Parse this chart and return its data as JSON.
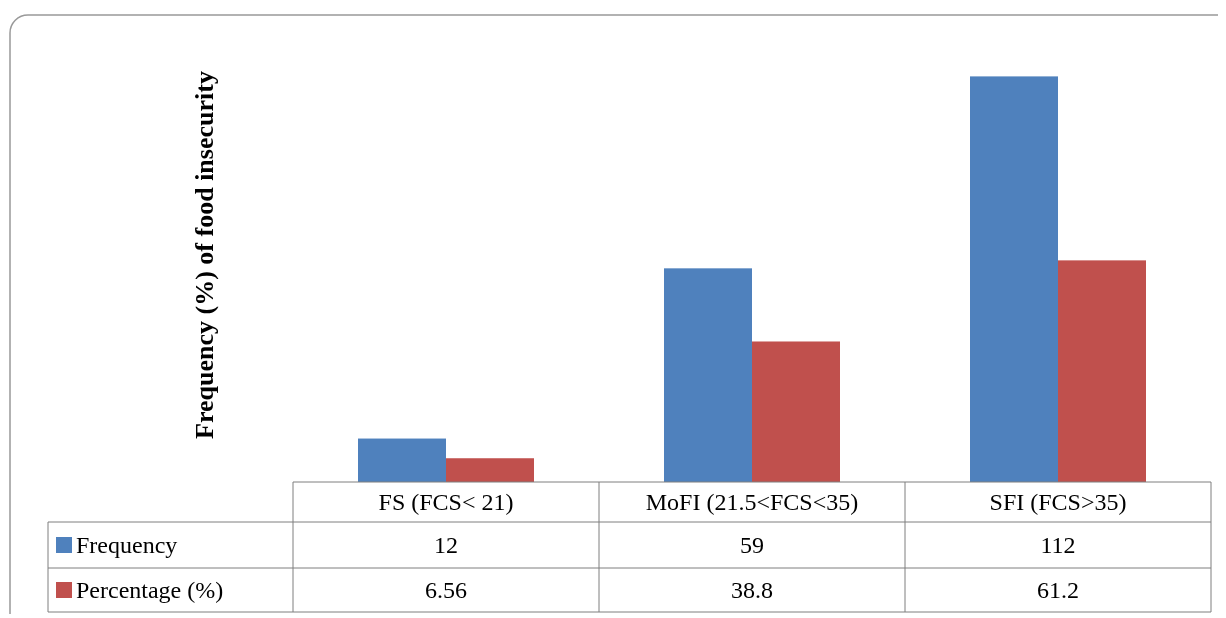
{
  "chart_data": {
    "type": "bar",
    "ylabel": "Frequency (%)  of food insecurity",
    "categories": [
      "FS (FCS< 21)",
      "MoFI (21.5<FCS<35)",
      "SFI (FCS>35)"
    ],
    "series": [
      {
        "name": "Frequency",
        "color": "#4f81bd",
        "values": [
          12,
          59,
          112
        ]
      },
      {
        "name": "Percentage (%)",
        "color": "#c0504d",
        "values": [
          6.56,
          38.8,
          61.2
        ]
      }
    ],
    "data_labels": true,
    "legend": "bottom",
    "grid": false
  }
}
